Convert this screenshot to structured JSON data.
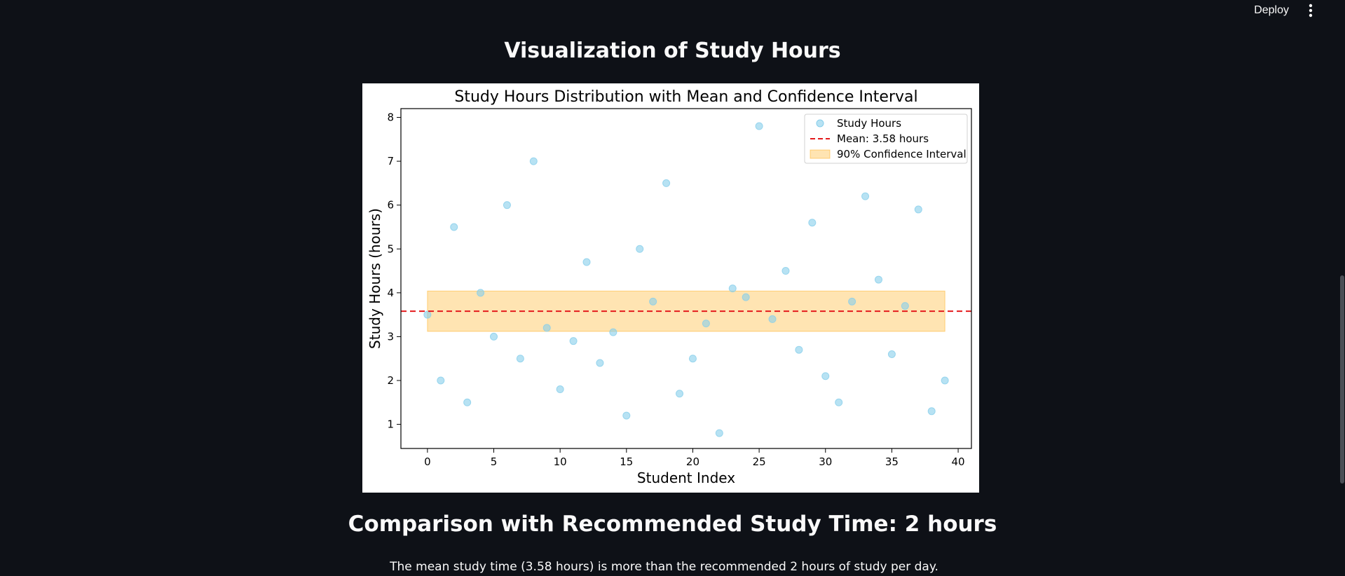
{
  "header": {
    "deploy_label": "Deploy",
    "menu_icon": "vertical-ellipsis-icon"
  },
  "sections": {
    "visualization_title": "Visualization of Study Hours",
    "comparison_title": "Comparison with Recommended Study Time: 2 hours",
    "comparison_text": "The mean study time (3.58 hours) is more than the recommended 2 hours of study per day."
  },
  "chart_data": {
    "type": "scatter",
    "title": "Study Hours Distribution with Mean and Confidence Interval",
    "xlabel": "Student Index",
    "ylabel": "Study Hours (hours)",
    "xlim": [
      -2,
      41
    ],
    "ylim": [
      0.45,
      8.2
    ],
    "xticks": [
      0,
      5,
      10,
      15,
      20,
      25,
      30,
      35,
      40
    ],
    "yticks": [
      1,
      2,
      3,
      4,
      5,
      6,
      7,
      8
    ],
    "grid": false,
    "legend_position": "top-right",
    "series": [
      {
        "name": "Study Hours",
        "color": "#87ceeb",
        "x": [
          0,
          1,
          2,
          3,
          4,
          5,
          6,
          7,
          8,
          9,
          10,
          11,
          12,
          13,
          14,
          15,
          16,
          17,
          18,
          19,
          20,
          21,
          22,
          23,
          24,
          25,
          26,
          27,
          28,
          29,
          30,
          31,
          32,
          33,
          34,
          35,
          36,
          37,
          38,
          39
        ],
        "y": [
          3.5,
          2.0,
          5.5,
          1.5,
          4.0,
          3.0,
          6.0,
          2.5,
          7.0,
          3.2,
          1.8,
          2.9,
          4.7,
          2.4,
          3.1,
          1.2,
          5.0,
          3.8,
          6.5,
          1.7,
          2.5,
          3.3,
          0.8,
          4.1,
          3.9,
          7.8,
          3.4,
          4.5,
          2.7,
          5.6,
          2.1,
          1.5,
          3.8,
          6.2,
          4.3,
          2.6,
          3.7,
          5.9,
          1.3,
          2.0
        ]
      }
    ],
    "mean": {
      "name": "Mean: 3.58 hours",
      "value": 3.58,
      "color": "#e41a1c"
    },
    "confidence_interval": {
      "name": "90% Confidence Interval",
      "lower": 3.12,
      "upper": 4.04,
      "x_range": [
        0,
        39
      ],
      "color": "#ffa500"
    }
  }
}
